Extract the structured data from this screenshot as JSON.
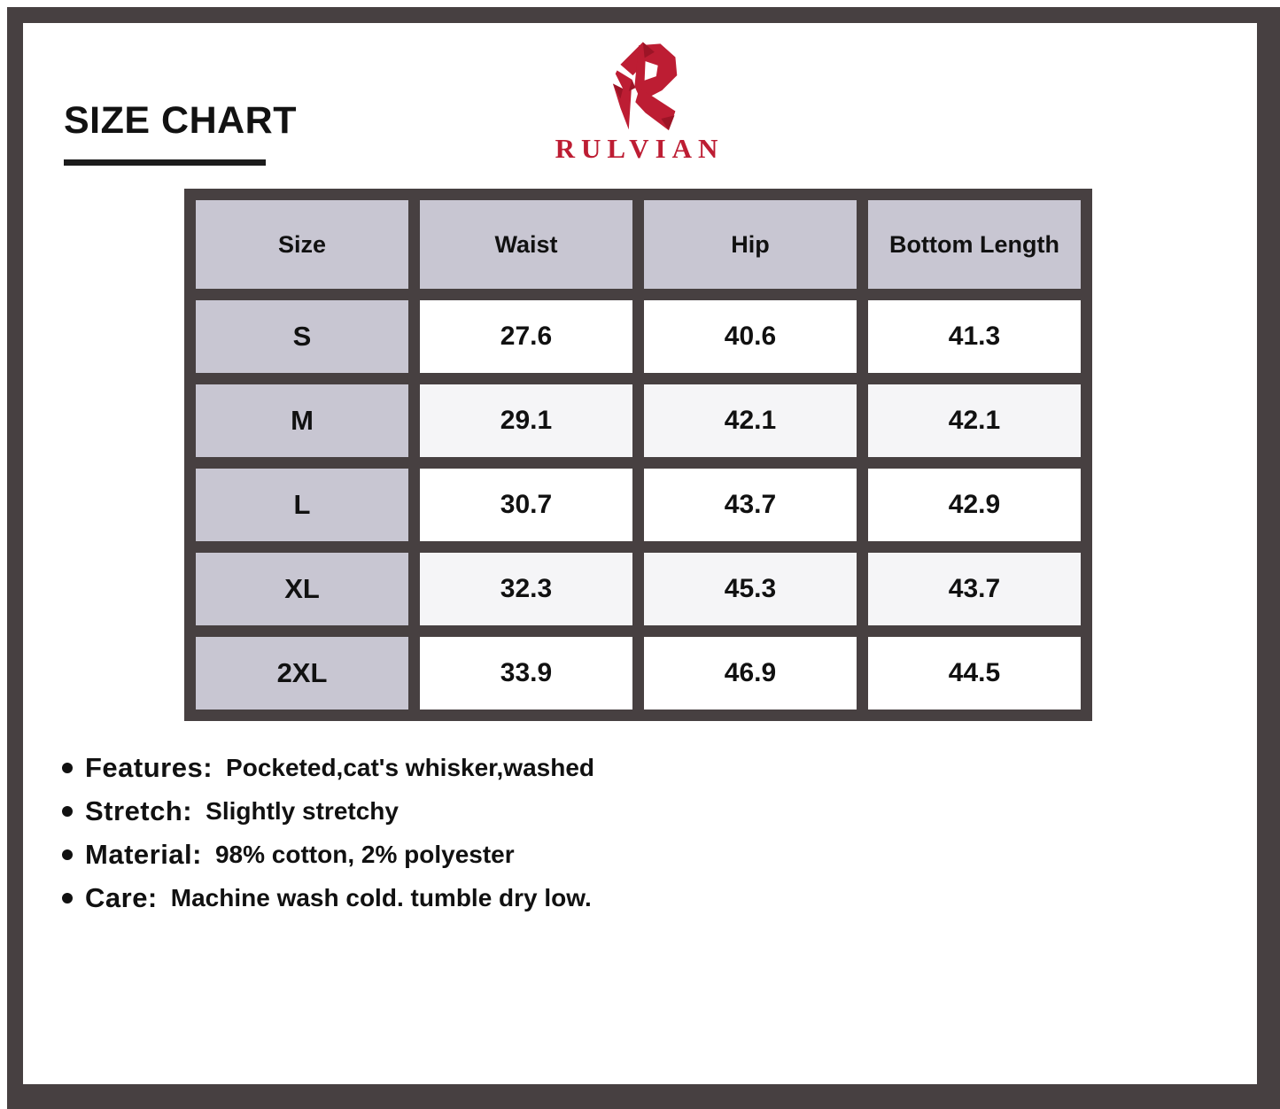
{
  "page": {
    "title": "SIZE CHART"
  },
  "brand": {
    "name": "RULVIAN"
  },
  "table": {
    "headers": [
      "Size",
      "Waist",
      "Hip",
      "Bottom Length"
    ],
    "rows": [
      {
        "size": "S",
        "values": [
          "27.6",
          "40.6",
          "41.3"
        ]
      },
      {
        "size": "M",
        "values": [
          "29.1",
          "42.1",
          "42.1"
        ]
      },
      {
        "size": "L",
        "values": [
          "30.7",
          "43.7",
          "42.9"
        ]
      },
      {
        "size": "XL",
        "values": [
          "32.3",
          "45.3",
          "43.7"
        ]
      },
      {
        "size": "2XL",
        "values": [
          "33.9",
          "46.9",
          "44.5"
        ]
      }
    ]
  },
  "details": [
    {
      "label": "Features:",
      "value": "Pocketed,cat's whisker,washed"
    },
    {
      "label": "Stretch:",
      "value": "Slightly stretchy"
    },
    {
      "label": "Material:",
      "value": "98% cotton, 2% polyester"
    },
    {
      "label": "Care:",
      "value": "Machine wash cold. tumble dry low."
    }
  ],
  "colors": {
    "brand_red": "#BD1D33",
    "logo_shade_red": "#9C1426",
    "frame_dark": "#474041",
    "header_lavender": "#C8C6D2",
    "row_alt": "#F5F5F7",
    "text_black": "#111111"
  },
  "icons": {
    "logo": "rulvian-r-logo",
    "bullet": "bullet-dot"
  }
}
